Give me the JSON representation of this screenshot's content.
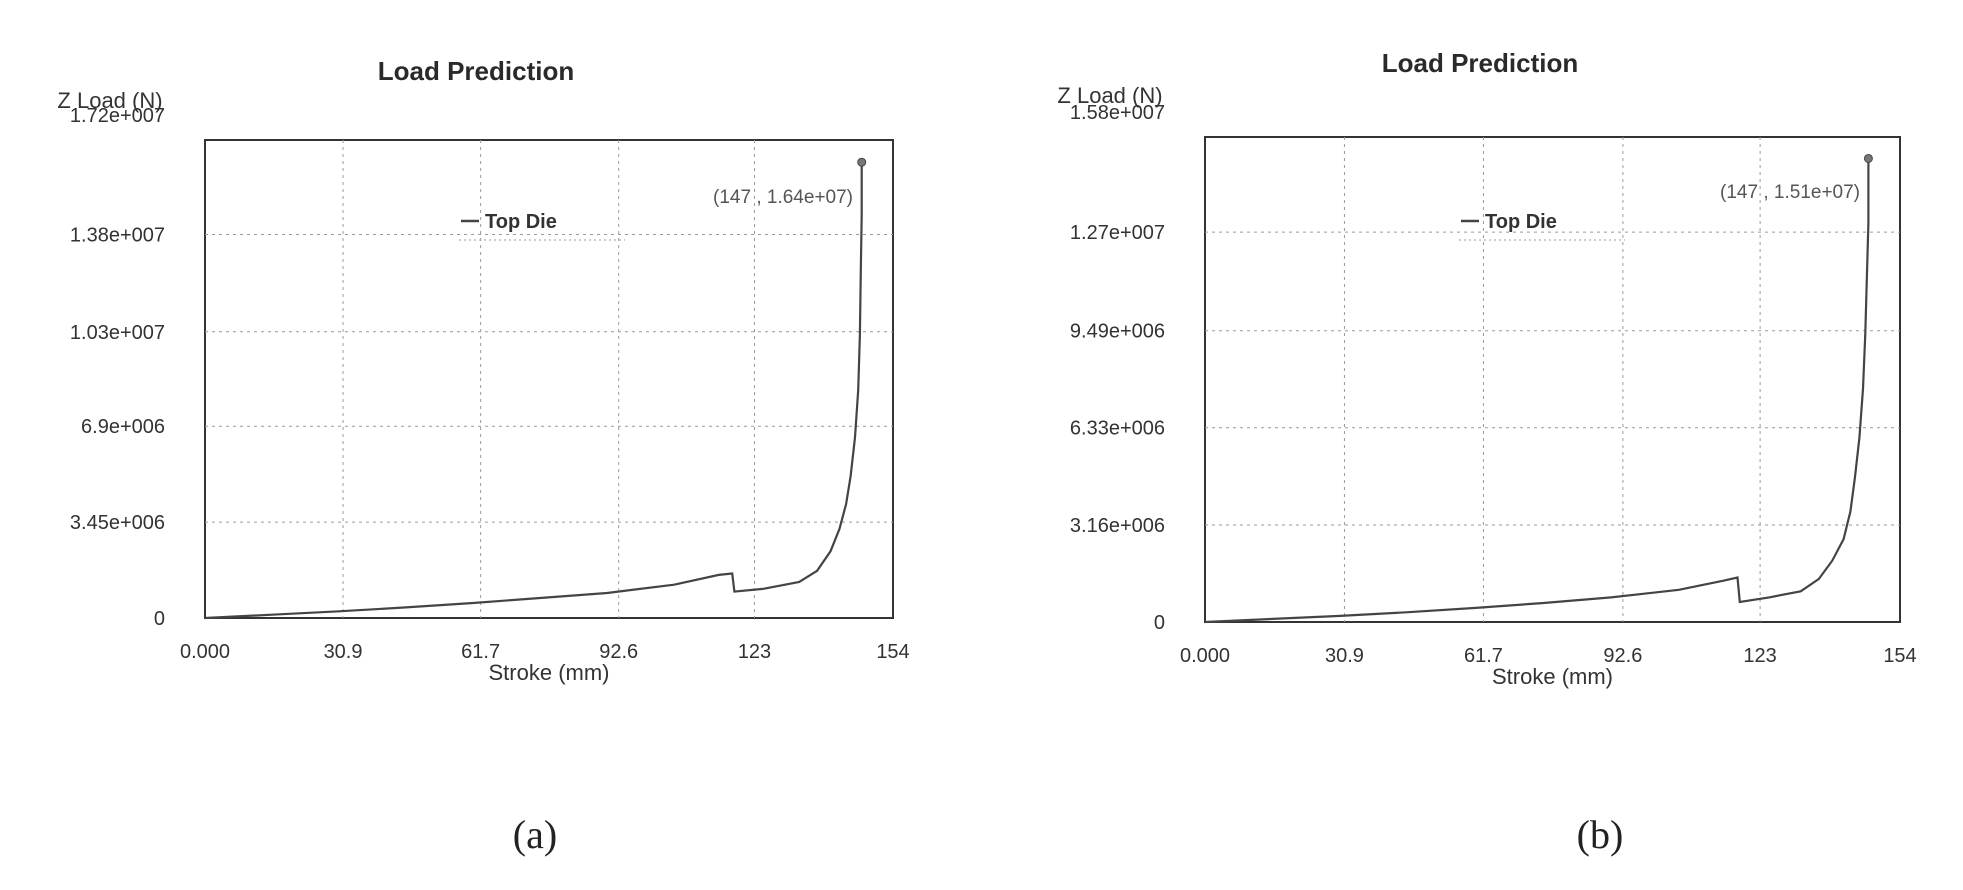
{
  "chart_data": [
    {
      "type": "line",
      "title": "Load Prediction",
      "ylabel": "Z Load (N)",
      "xlabel": "Stroke (mm)",
      "caption": "(a)",
      "legend": "Top Die",
      "annotation": "(147 , 1.64e+07)",
      "xlim": [
        0,
        154
      ],
      "ylim": [
        0,
        17200000
      ],
      "xticks": [
        0,
        30.9,
        61.7,
        92.6,
        123,
        154
      ],
      "xtick_labels": [
        "0.000",
        "30.9",
        "61.7",
        "92.6",
        "123",
        "154"
      ],
      "yticks": [
        0,
        3450000,
        6900000,
        10300000,
        13800000,
        17200000
      ],
      "ytick_labels": [
        "0",
        "3.45e+006",
        "6.9e+006",
        "1.03e+007",
        "1.38e+007",
        "1.72e+007"
      ],
      "grid": true,
      "series": [
        {
          "name": "Top Die",
          "x": [
            0,
            15,
            30,
            45,
            60,
            75,
            90,
            105,
            115,
            118,
            118.5,
            125,
            133,
            137,
            140,
            142,
            143.5,
            144.5,
            145.5,
            146.2,
            146.6,
            146.8,
            147,
            147
          ],
          "y": [
            0,
            120000,
            240000,
            380000,
            540000,
            720000,
            900000,
            1200000,
            1550000,
            1600000,
            950000,
            1050000,
            1300000,
            1700000,
            2400000,
            3200000,
            4100000,
            5100000,
            6500000,
            8200000,
            10200000,
            12500000,
            14500000,
            16400000
          ]
        }
      ]
    },
    {
      "type": "line",
      "title": "Load Prediction",
      "ylabel": "Z Load (N)",
      "xlabel": "Stroke (mm)",
      "caption": "(b)",
      "legend": "Top Die",
      "annotation": "(147 , 1.51e+07)",
      "xlim": [
        0,
        154
      ],
      "ylim": [
        0,
        15800000
      ],
      "xticks": [
        0,
        30.9,
        61.7,
        92.6,
        123,
        154
      ],
      "xtick_labels": [
        "0.000",
        "30.9",
        "61.7",
        "92.6",
        "123",
        "154"
      ],
      "yticks": [
        0,
        3160000,
        6330000,
        9490000,
        12700000,
        15800000
      ],
      "ytick_labels": [
        "0",
        "3.16e+006",
        "6.33e+006",
        "9.49e+006",
        "1.27e+007",
        "1.58e+007"
      ],
      "grid": true,
      "series": [
        {
          "name": "Top Die",
          "x": [
            0,
            15,
            30,
            45,
            60,
            75,
            90,
            105,
            115,
            118,
            118.5,
            125,
            132,
            136,
            139,
            141.5,
            143,
            144,
            145,
            145.8,
            146.3,
            146.7,
            147,
            147
          ],
          "y": [
            0,
            100000,
            200000,
            320000,
            460000,
            620000,
            800000,
            1050000,
            1350000,
            1450000,
            650000,
            800000,
            1000000,
            1400000,
            2000000,
            2700000,
            3600000,
            4700000,
            6000000,
            7600000,
            9400000,
            11500000,
            13000000,
            15100000
          ]
        }
      ]
    }
  ]
}
